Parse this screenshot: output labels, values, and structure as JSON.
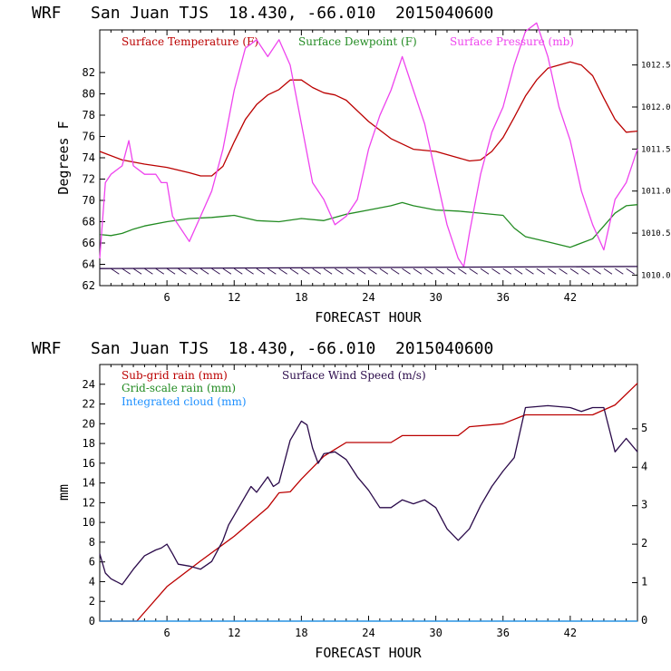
{
  "chart_data": [
    {
      "type": "line",
      "title": "WRF   San Juan TJS  18.430, -66.010  2015040600",
      "xlabel": "FORECAST HOUR",
      "ylabel": "Degrees F",
      "xlim": [
        0,
        48
      ],
      "xticks": [
        6,
        12,
        18,
        24,
        30,
        36,
        42
      ],
      "ylim": [
        62,
        86
      ],
      "yticks": [
        62,
        64,
        66,
        68,
        70,
        72,
        74,
        76,
        78,
        80,
        82
      ],
      "y2lim": [
        1009.875,
        1012.917
      ],
      "y2ticks": [
        1010.0,
        1010.5,
        1011.0,
        1011.5,
        1012.0,
        1012.5
      ],
      "y2ticklabels": [
        "1010.0",
        "1010.5",
        "1011.0",
        "1011.5",
        "1012.0",
        "1012.5"
      ],
      "series": [
        {
          "name": "Surface Temperature (F)",
          "color": "#bb0000",
          "axis": "left",
          "x": [
            0,
            2,
            4,
            6,
            8,
            9,
            10,
            11,
            12,
            13,
            14,
            15,
            16,
            17,
            18,
            19,
            20,
            21,
            22,
            24,
            26,
            28,
            30,
            32,
            33,
            34,
            35,
            36,
            37,
            38,
            39,
            40,
            41,
            42,
            43,
            44,
            45,
            46,
            47,
            48
          ],
          "y": [
            74.6,
            73.8,
            73.4,
            73.1,
            72.6,
            72.3,
            72.3,
            73.2,
            75.5,
            77.6,
            79.0,
            79.9,
            80.4,
            81.3,
            81.3,
            80.6,
            80.1,
            79.9,
            79.4,
            77.4,
            75.8,
            74.8,
            74.6,
            74.0,
            73.7,
            73.8,
            74.6,
            75.9,
            77.8,
            79.8,
            81.3,
            82.4,
            82.7,
            83.0,
            82.7,
            81.7,
            79.6,
            77.6,
            76.4,
            76.5
          ]
        },
        {
          "name": "Surface Dewpoint (F)",
          "color": "#228b22",
          "axis": "left",
          "x": [
            0,
            1,
            2,
            3,
            4,
            6,
            8,
            10,
            12,
            14,
            16,
            18,
            20,
            22,
            24,
            26,
            27,
            28,
            30,
            32,
            34,
            36,
            37,
            38,
            40,
            42,
            44,
            46,
            47,
            48
          ],
          "y": [
            66.8,
            66.7,
            66.9,
            67.3,
            67.6,
            68.0,
            68.3,
            68.4,
            68.6,
            68.1,
            68.0,
            68.3,
            68.1,
            68.7,
            69.1,
            69.5,
            69.8,
            69.5,
            69.1,
            69.0,
            68.8,
            68.6,
            67.4,
            66.6,
            66.1,
            65.6,
            66.4,
            68.8,
            69.5,
            69.6
          ]
        },
        {
          "name": "Surface Pressure (mb)",
          "color": "#ee44ee",
          "axis": "right",
          "x": [
            0,
            0.5,
            1,
            2,
            2.6,
            3,
            4,
            5,
            5.5,
            6,
            6.5,
            7,
            8,
            9,
            10,
            11,
            12,
            13,
            14,
            15,
            16,
            17,
            18,
            19,
            20,
            21,
            22,
            23,
            24,
            25,
            26,
            27,
            28,
            29,
            30,
            31,
            32,
            32.5,
            33,
            34,
            35,
            36,
            37,
            38,
            39,
            40,
            41,
            42,
            43,
            44,
            45,
            46,
            47,
            48
          ],
          "y": [
            1010.2,
            1011.1,
            1011.2,
            1011.3,
            1011.6,
            1011.3,
            1011.2,
            1011.2,
            1011.1,
            1011.1,
            1010.7,
            1010.6,
            1010.4,
            1010.7,
            1011.0,
            1011.5,
            1012.2,
            1012.7,
            1012.8,
            1012.6,
            1012.8,
            1012.5,
            1011.8,
            1011.1,
            1010.9,
            1010.6,
            1010.7,
            1010.9,
            1011.5,
            1011.9,
            1012.2,
            1012.6,
            1012.2,
            1011.8,
            1011.2,
            1010.6,
            1010.2,
            1010.1,
            1010.5,
            1011.2,
            1011.7,
            1012.0,
            1012.5,
            1012.9,
            1013.0,
            1012.6,
            1012.0,
            1011.6,
            1011.0,
            1010.6,
            1010.3,
            1010.9,
            1011.1,
            1011.5
          ]
        },
        {
          "name": "Wind barbs",
          "color": "#2a0a4a",
          "axis": "left",
          "x": [
            0,
            48
          ],
          "y": [
            63.6,
            63.8
          ]
        }
      ],
      "legend": [
        "Surface Temperature (F)",
        "Surface Dewpoint (F)",
        "Surface Pressure (mb)"
      ],
      "legend_placement": "top"
    },
    {
      "type": "line",
      "title": "WRF   San Juan TJS  18.430, -66.010  2015040600",
      "xlabel": "FORECAST HOUR",
      "ylabel": "mm",
      "xlim": [
        0,
        48
      ],
      "xticks": [
        6,
        12,
        18,
        24,
        30,
        36,
        42
      ],
      "ylim": [
        0,
        26
      ],
      "yticks": [
        0,
        2,
        4,
        6,
        8,
        10,
        12,
        14,
        16,
        18,
        20,
        22,
        24
      ],
      "y2lim": [
        0,
        6.67
      ],
      "y2ticks": [
        0,
        1,
        2,
        3,
        4,
        5
      ],
      "y2ticklabels": [
        "0",
        "1",
        "2",
        "3",
        "4",
        "5"
      ],
      "series": [
        {
          "name": "Sub-grid rain (mm)",
          "color": "#bb0000",
          "axis": "left",
          "x": [
            0,
            3.3,
            6,
            9,
            12,
            15,
            16,
            17,
            18,
            20,
            21,
            22,
            24,
            26,
            27,
            28,
            30,
            32,
            33,
            36,
            38,
            40,
            44,
            46,
            48
          ],
          "y": [
            0,
            0,
            3.5,
            6.1,
            8.6,
            11.5,
            13.0,
            13.1,
            14.4,
            16.7,
            17.4,
            18.1,
            18.1,
            18.1,
            18.8,
            18.8,
            18.8,
            18.8,
            19.7,
            20.0,
            20.9,
            20.9,
            20.9,
            21.9,
            24.1
          ]
        },
        {
          "name": "Grid-scale rain (mm)",
          "color": "#228b22",
          "axis": "left",
          "x": [
            0,
            48
          ],
          "y": [
            0,
            0
          ]
        },
        {
          "name": "Integrated cloud (mm)",
          "color": "#1e90ff",
          "axis": "left",
          "x": [
            0,
            48
          ],
          "y": [
            0,
            0
          ]
        },
        {
          "name": "Surface Wind Speed (m/s)",
          "color": "#2a0a4a",
          "axis": "right",
          "x": [
            0,
            0.5,
            1,
            2,
            3,
            4,
            5,
            5.5,
            6,
            6.5,
            7,
            8,
            9,
            10,
            11,
            11.5,
            12,
            13,
            13.5,
            14,
            15,
            15.5,
            16,
            17,
            18,
            18.5,
            19,
            19.5,
            20,
            21,
            22,
            23,
            24,
            25,
            26,
            27,
            28,
            29,
            30,
            31,
            32,
            33,
            34,
            35,
            36,
            37,
            38,
            40,
            42,
            43,
            44,
            45,
            46,
            47,
            48
          ],
          "y": [
            1.75,
            1.25,
            1.1,
            0.95,
            1.35,
            1.7,
            1.85,
            1.9,
            2.0,
            1.75,
            1.48,
            1.43,
            1.35,
            1.55,
            2.1,
            2.5,
            2.75,
            3.25,
            3.5,
            3.35,
            3.75,
            3.5,
            3.6,
            4.7,
            5.2,
            5.1,
            4.5,
            4.1,
            4.35,
            4.4,
            4.2,
            3.75,
            3.4,
            2.95,
            2.95,
            3.15,
            3.05,
            3.15,
            2.95,
            2.4,
            2.1,
            2.4,
            3.0,
            3.5,
            3.9,
            4.25,
            5.55,
            5.6,
            5.55,
            5.45,
            5.55,
            5.55,
            4.4,
            4.75,
            4.4
          ]
        }
      ],
      "legend": [
        "Sub-grid rain (mm)",
        "Grid-scale rain (mm)",
        "Integrated cloud (mm)",
        "Surface Wind Speed (m/s)"
      ],
      "legend_placement": "top-left"
    }
  ]
}
